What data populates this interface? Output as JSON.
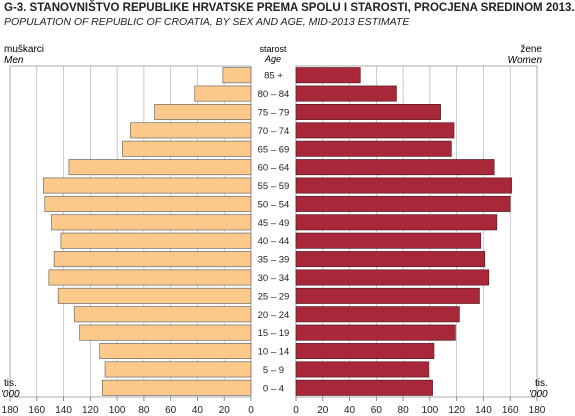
{
  "chart_data": {
    "type": "bar",
    "title": "G-3. STANOVNIŠTVO REPUBLIKE HRVATSKE PREMA SPOLU I STAROSTI, PROCJENA SREDINOM 2013.",
    "subtitle": "POPULATION OF REPUBLIC OF CROATIA, BY SEX AND AGE, MID-2013 ESTIMATE",
    "center_label_hr": "starost",
    "center_label_en": "Age",
    "unit_label_hr": "tis.",
    "unit_label_en": "'000",
    "xlim": [
      0,
      180
    ],
    "xticks": [
      180,
      160,
      140,
      120,
      100,
      80,
      60,
      40,
      20,
      0
    ],
    "xticks_right": [
      0,
      20,
      40,
      60,
      80,
      100,
      120,
      140,
      160,
      180
    ],
    "categories": [
      "85 +",
      "80 – 84",
      "75 – 79",
      "70 – 74",
      "65 – 69",
      "60 – 64",
      "55 – 59",
      "50 – 54",
      "45 – 49",
      "40 – 44",
      "35 – 39",
      "30 – 34",
      "25 – 29",
      "20 – 24",
      "15 – 19",
      "10 – 14",
      "5 – 9",
      "0 – 4"
    ],
    "series": [
      {
        "name_hr": "muškarci",
        "name_en": "Men",
        "side": "left",
        "color": "#fdc98a",
        "values": [
          21,
          42,
          72,
          90,
          96,
          136,
          155,
          154,
          149,
          142,
          147,
          151,
          144,
          132,
          128,
          113,
          109,
          111
        ]
      },
      {
        "name_hr": "žene",
        "name_en": "Women",
        "side": "right",
        "color": "#a8283a",
        "values": [
          48,
          75,
          108,
          118,
          116,
          148,
          161,
          160,
          150,
          138,
          141,
          144,
          137,
          122,
          119,
          103,
          99,
          102
        ]
      }
    ]
  }
}
